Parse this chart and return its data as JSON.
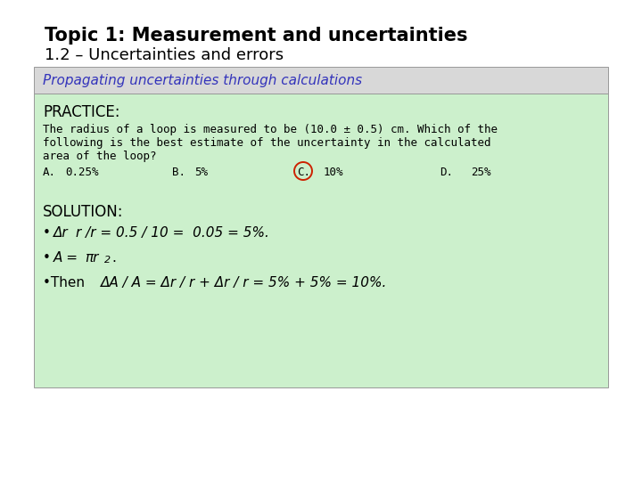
{
  "title_line1": "Topic 1: Measurement and uncertainties",
  "title_line2": "1.2 – Uncertainties and errors",
  "subtitle": "Propagating uncertainties through calculations",
  "bg_color": "#ffffff",
  "box_bg_color": "#ccf0cc",
  "subtitle_bg_color": "#d8d8d8",
  "subtitle_color": "#3333bb",
  "practice_label": "PRACTICE:",
  "question_line1": "The radius of a loop is measured to be (10.0 ± 0.5) cm. Which of the",
  "question_line2": "following is the best estimate of the uncertainty in the calculated",
  "question_line3": "area of the loop?",
  "opt_a_label": "A.",
  "opt_a_val": "0.25%",
  "opt_b_label": "B.",
  "opt_b_val": "5%",
  "opt_c_label": "C.",
  "opt_c_val": "10%",
  "opt_d_label": "D.",
  "opt_d_val": "25%",
  "solution_label": "SOLUTION:",
  "sol1_bullet": "•",
  "sol1_delta": "Δ",
  "sol1_rest": "r /r = 0.5 / 10 =  0.05 = 5%.",
  "sol2_bullet": "•",
  "sol2_A": "A = ",
  "sol2_pi": "π",
  "sol2_r": "r",
  "sol2_sup": "2",
  "sol2_dot": ".",
  "sol3_bullet": "•",
  "sol3_then": "Then ",
  "sol3_delta1": "Δ",
  "sol3_rest": "A / A = ",
  "sol3_delta2": "Δ",
  "sol3_rest2": "r / r + ",
  "sol3_delta3": "Δ",
  "sol3_rest3": "r / r = 5% + 5% = 10%.",
  "circle_color": "#cc2200",
  "title1_fontsize": 15,
  "title2_fontsize": 13,
  "subtitle_fontsize": 11,
  "practice_fontsize": 12,
  "question_fontsize": 9,
  "options_fontsize": 9,
  "solution_label_fontsize": 12,
  "solution_fontsize": 11
}
